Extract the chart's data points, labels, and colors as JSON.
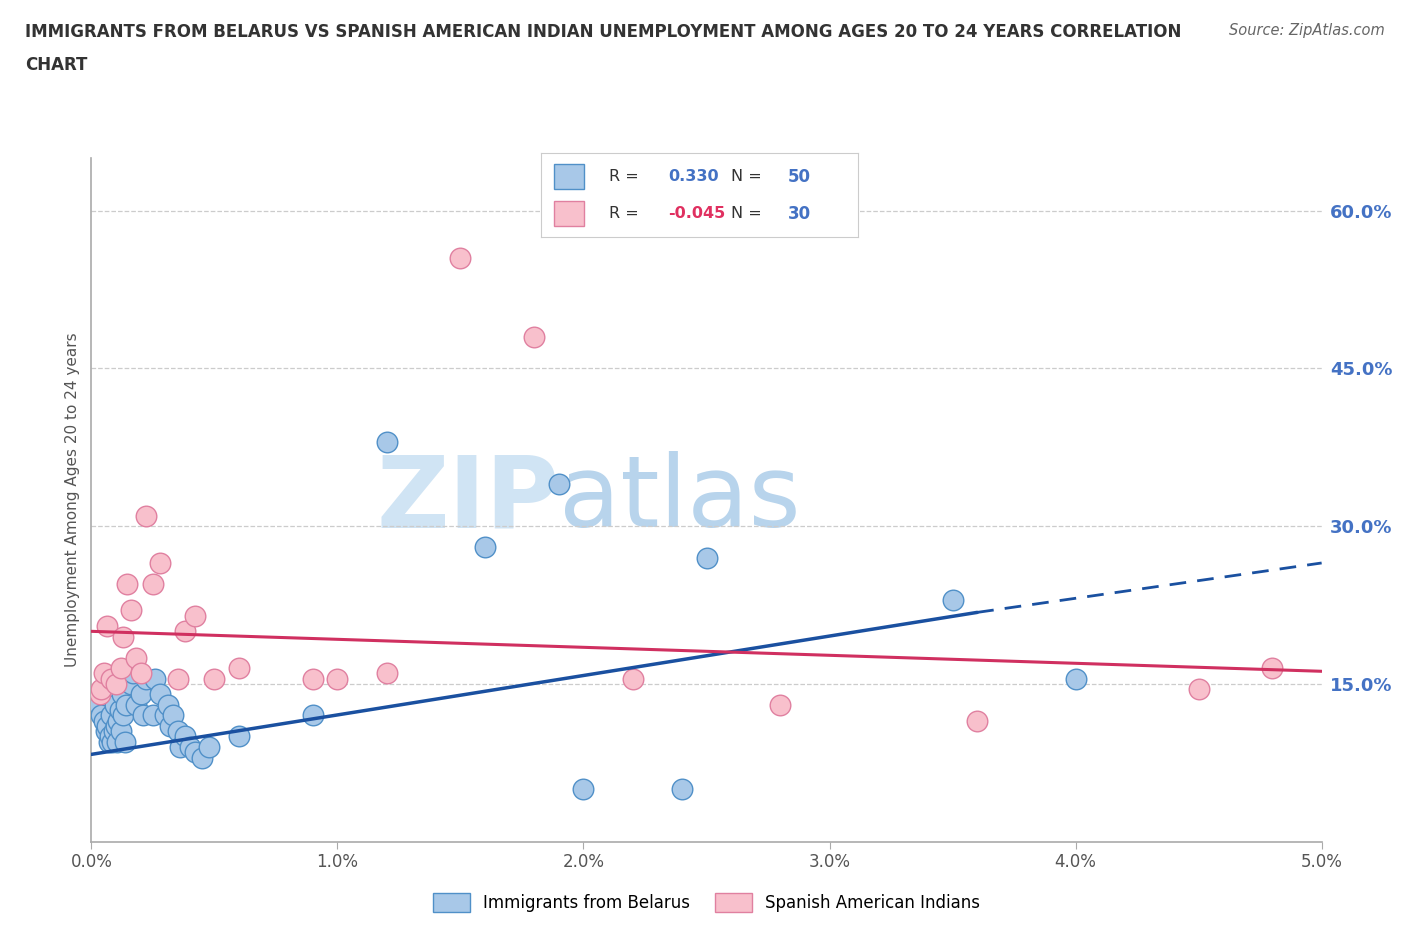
{
  "title_line1": "IMMIGRANTS FROM BELARUS VS SPANISH AMERICAN INDIAN UNEMPLOYMENT AMONG AGES 20 TO 24 YEARS CORRELATION",
  "title_line2": "CHART",
  "source": "Source: ZipAtlas.com",
  "ylabel": "Unemployment Among Ages 20 to 24 years",
  "xlim": [
    0.0,
    0.05
  ],
  "ylim": [
    0.0,
    0.65
  ],
  "xticks": [
    0.0,
    0.01,
    0.02,
    0.03,
    0.04,
    0.05
  ],
  "xticklabels": [
    "0.0%",
    "1.0%",
    "2.0%",
    "3.0%",
    "4.0%",
    "5.0%"
  ],
  "yticks_right": [
    0.15,
    0.3,
    0.45,
    0.6
  ],
  "ytick_labels_right": [
    "15.0%",
    "30.0%",
    "45.0%",
    "60.0%"
  ],
  "blue_face": "#a8c8e8",
  "blue_edge": "#5090c8",
  "pink_face": "#f8c0cc",
  "pink_edge": "#e080a0",
  "trend_blue": "#1a50a0",
  "trend_pink": "#d03060",
  "watermark_color": "#d0e4f4",
  "label_blue": "Immigrants from Belarus",
  "label_pink": "Spanish American Indians",
  "blue_x": [
    0.0003,
    0.0004,
    0.0005,
    0.0006,
    0.00065,
    0.0007,
    0.00075,
    0.0008,
    0.00085,
    0.0009,
    0.00095,
    0.001,
    0.00105,
    0.0011,
    0.00115,
    0.0012,
    0.00125,
    0.0013,
    0.00135,
    0.0014,
    0.0016,
    0.0017,
    0.0018,
    0.002,
    0.0021,
    0.0022,
    0.0025,
    0.0026,
    0.0028,
    0.003,
    0.0031,
    0.0032,
    0.0033,
    0.0035,
    0.0036,
    0.0038,
    0.004,
    0.0042,
    0.0045,
    0.0048,
    0.006,
    0.009,
    0.012,
    0.016,
    0.019,
    0.02,
    0.024,
    0.025,
    0.035,
    0.04
  ],
  "blue_y": [
    0.13,
    0.12,
    0.115,
    0.105,
    0.11,
    0.095,
    0.1,
    0.12,
    0.095,
    0.105,
    0.13,
    0.11,
    0.095,
    0.115,
    0.125,
    0.105,
    0.14,
    0.12,
    0.095,
    0.13,
    0.15,
    0.16,
    0.13,
    0.14,
    0.12,
    0.155,
    0.12,
    0.155,
    0.14,
    0.12,
    0.13,
    0.11,
    0.12,
    0.105,
    0.09,
    0.1,
    0.09,
    0.085,
    0.08,
    0.09,
    0.1,
    0.12,
    0.38,
    0.28,
    0.34,
    0.05,
    0.05,
    0.27,
    0.23,
    0.155
  ],
  "pink_x": [
    0.00035,
    0.0004,
    0.0005,
    0.00065,
    0.0008,
    0.001,
    0.0012,
    0.0013,
    0.00145,
    0.0016,
    0.0018,
    0.002,
    0.0022,
    0.0025,
    0.0028,
    0.0035,
    0.0038,
    0.0042,
    0.005,
    0.006,
    0.009,
    0.01,
    0.012,
    0.015,
    0.018,
    0.022,
    0.028,
    0.036,
    0.045,
    0.048
  ],
  "pink_y": [
    0.14,
    0.145,
    0.16,
    0.205,
    0.155,
    0.15,
    0.165,
    0.195,
    0.245,
    0.22,
    0.175,
    0.16,
    0.31,
    0.245,
    0.265,
    0.155,
    0.2,
    0.215,
    0.155,
    0.165,
    0.155,
    0.155,
    0.16,
    0.555,
    0.48,
    0.155,
    0.13,
    0.115,
    0.145,
    0.165
  ],
  "grid_color": "#cccccc",
  "background_color": "#ffffff",
  "title_color": "#333333",
  "blue_trend_x0": 0.0,
  "blue_trend_x1": 0.036,
  "blue_trend_x2": 0.05,
  "blue_trend_y0": 0.083,
  "blue_trend_y1": 0.218,
  "blue_trend_y2": 0.265,
  "pink_trend_x0": 0.0,
  "pink_trend_x1": 0.05,
  "pink_trend_y0": 0.2,
  "pink_trend_y1": 0.162
}
